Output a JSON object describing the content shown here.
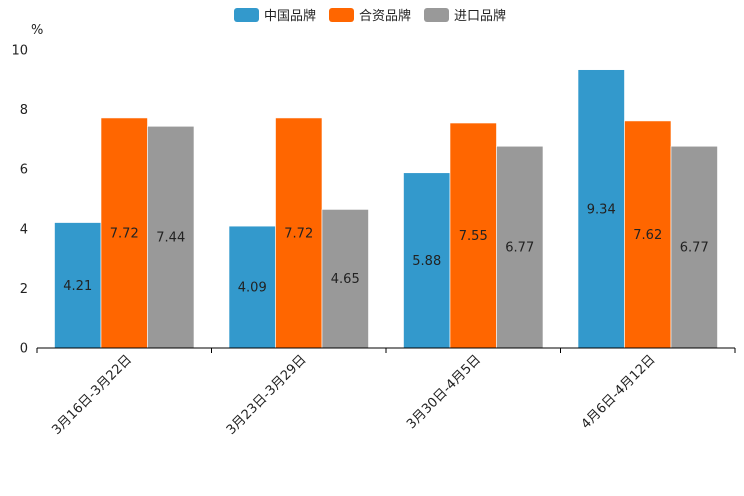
{
  "chart_data": {
    "type": "bar",
    "title": "",
    "xlabel": "",
    "ylabel": "%",
    "ylim": [
      0,
      10
    ],
    "yticks": [
      0,
      2,
      4,
      6,
      8,
      10
    ],
    "grid": false,
    "legend_position": "top",
    "categories": [
      "3月16日-3月22日",
      "3月23日-3月29日",
      "3月30日-4月5日",
      "4月6日-4月12日"
    ],
    "series": [
      {
        "name": "中国品牌",
        "color": "#3399cc",
        "values": [
          4.21,
          4.09,
          5.88,
          9.34
        ],
        "labels": [
          "4.21",
          "4.09",
          "5.88",
          "9.34"
        ]
      },
      {
        "name": "合资品牌",
        "color": "#ff6600",
        "values": [
          7.72,
          7.72,
          7.55,
          7.62
        ],
        "labels": [
          "7.72",
          "7.72",
          "7.55",
          "7.62"
        ]
      },
      {
        "name": "进口品牌",
        "color": "#999999",
        "values": [
          7.44,
          4.65,
          6.77,
          6.77
        ],
        "labels": [
          "7.44",
          "4.65",
          "6.77",
          "6.77"
        ]
      }
    ]
  }
}
